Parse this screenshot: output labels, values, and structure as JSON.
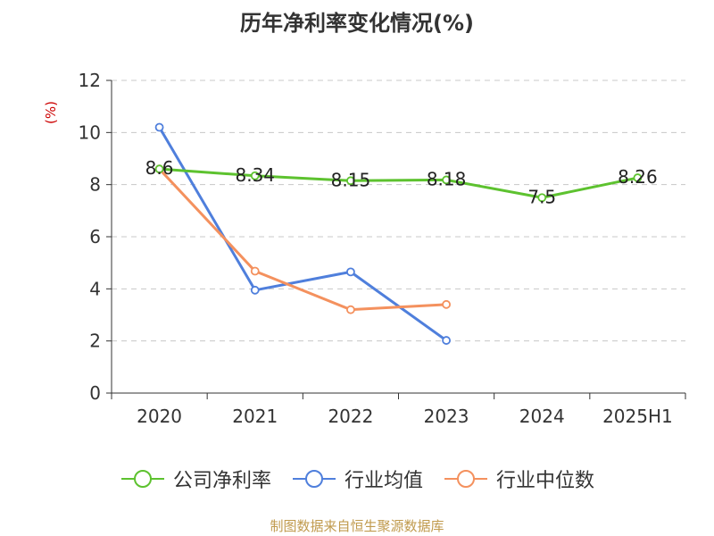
{
  "chart_data": {
    "type": "line",
    "title": "历年净利率变化情况(%)",
    "ylabel": "(%)",
    "xlabel": "",
    "categories": [
      "2020",
      "2021",
      "2022",
      "2023",
      "2024",
      "2025H1"
    ],
    "ylim": [
      0,
      12
    ],
    "yticks": [
      0,
      2,
      4,
      6,
      8,
      10,
      12
    ],
    "grid": true,
    "legend_position": "bottom",
    "series": [
      {
        "name": "公司净利率",
        "color": "#5dc22f",
        "values": [
          8.6,
          8.34,
          8.15,
          8.18,
          7.5,
          8.26
        ],
        "data_labels": [
          "8.6",
          "8.34",
          "8.15",
          "8.18",
          "7.5",
          "8.26"
        ]
      },
      {
        "name": "行业均值",
        "color": "#4f7fdc",
        "values": [
          10.2,
          3.95,
          4.65,
          2.02,
          null,
          null
        ]
      },
      {
        "name": "行业中位数",
        "color": "#f4915e",
        "values": [
          8.6,
          4.68,
          3.2,
          3.4,
          null,
          null
        ]
      }
    ]
  },
  "source": "制图数据来自恒生聚源数据库"
}
